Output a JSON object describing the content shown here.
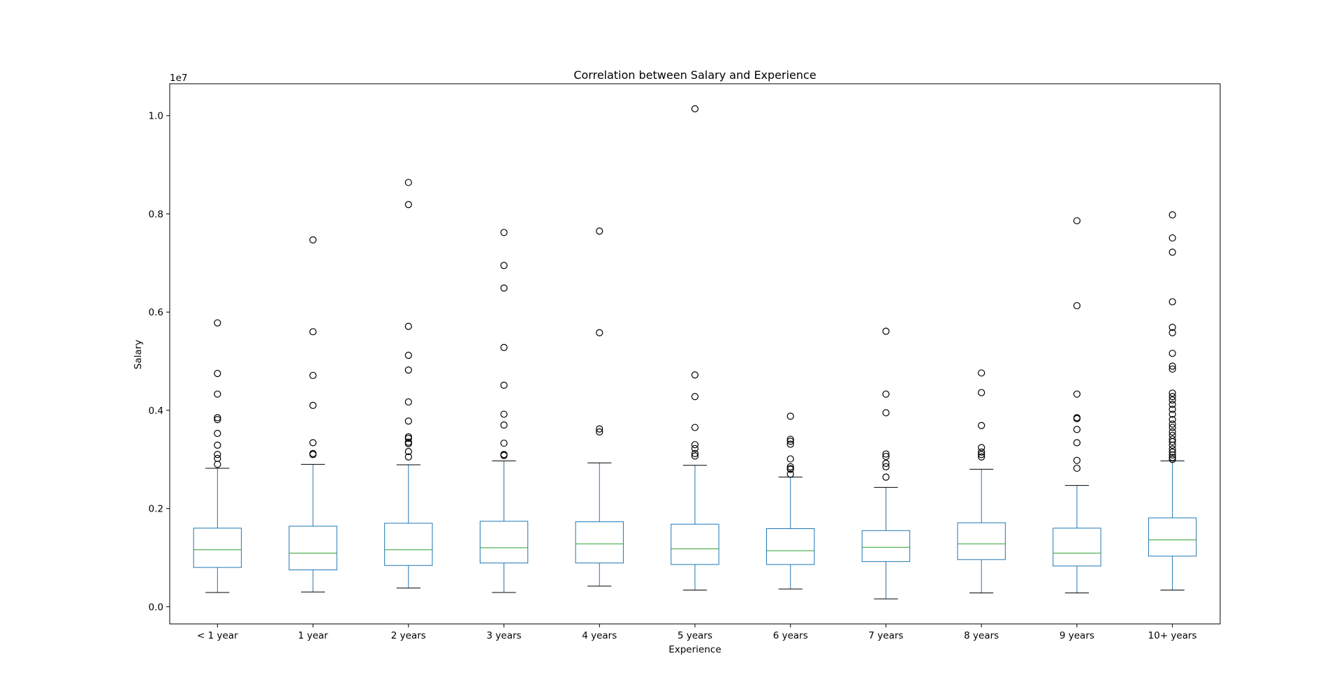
{
  "chart_data": {
    "type": "boxplot",
    "title": "Correlation between Salary and Experience",
    "xlabel": "Experience",
    "ylabel": "Salary",
    "y_offset_label": "1e7",
    "ylim": [
      -0.035,
      1.065
    ],
    "yticks": [
      0.0,
      0.2,
      0.4,
      0.6,
      0.8,
      1.0
    ],
    "ytick_labels": [
      "0.0",
      "0.2",
      "0.4",
      "0.6",
      "0.8",
      "1.0"
    ],
    "colors": {
      "box": "#1f77b4",
      "median": "#2ca02c",
      "whisker_cap": "#000000",
      "outlier": "#000000"
    },
    "categories": [
      "< 1 year",
      "1 year",
      "2 years",
      "3 years",
      "4 years",
      "5 years",
      "6 years",
      "7 years",
      "8 years",
      "9 years",
      "10+ years"
    ],
    "boxes": [
      {
        "whislo": 0.029,
        "q1": 0.08,
        "med": 0.116,
        "q3": 0.16,
        "whishi": 0.282,
        "fliers": [
          0.578,
          0.475,
          0.433,
          0.385,
          0.381,
          0.353,
          0.329,
          0.31,
          0.302,
          0.29
        ]
      },
      {
        "whislo": 0.03,
        "q1": 0.075,
        "med": 0.109,
        "q3": 0.164,
        "whishi": 0.29,
        "fliers": [
          0.747,
          0.56,
          0.471,
          0.41,
          0.334,
          0.312,
          0.31
        ]
      },
      {
        "whislo": 0.038,
        "q1": 0.084,
        "med": 0.116,
        "q3": 0.17,
        "whishi": 0.289,
        "fliers": [
          0.864,
          0.819,
          0.571,
          0.512,
          0.482,
          0.417,
          0.378,
          0.346,
          0.343,
          0.335,
          0.332,
          0.316,
          0.305
        ]
      },
      {
        "whislo": 0.029,
        "q1": 0.089,
        "med": 0.12,
        "q3": 0.174,
        "whishi": 0.297,
        "fliers": [
          0.762,
          0.695,
          0.649,
          0.528,
          0.451,
          0.392,
          0.37,
          0.333,
          0.31,
          0.308
        ]
      },
      {
        "whislo": 0.042,
        "q1": 0.089,
        "med": 0.128,
        "q3": 0.173,
        "whishi": 0.293,
        "fliers": [
          0.765,
          0.558,
          0.362,
          0.356
        ]
      },
      {
        "whislo": 0.034,
        "q1": 0.086,
        "med": 0.118,
        "q3": 0.168,
        "whishi": 0.288,
        "fliers": [
          1.014,
          0.472,
          0.428,
          0.365,
          0.33,
          0.322,
          0.312,
          0.307
        ]
      },
      {
        "whislo": 0.036,
        "q1": 0.086,
        "med": 0.114,
        "q3": 0.159,
        "whishi": 0.264,
        "fliers": [
          0.388,
          0.341,
          0.337,
          0.331,
          0.301,
          0.285,
          0.281,
          0.28,
          0.27
        ]
      },
      {
        "whislo": 0.016,
        "q1": 0.092,
        "med": 0.121,
        "q3": 0.155,
        "whishi": 0.243,
        "fliers": [
          0.561,
          0.433,
          0.395,
          0.311,
          0.306,
          0.292,
          0.285,
          0.264
        ]
      },
      {
        "whislo": 0.028,
        "q1": 0.096,
        "med": 0.128,
        "q3": 0.171,
        "whishi": 0.28,
        "fliers": [
          0.476,
          0.436,
          0.369,
          0.324,
          0.315,
          0.31,
          0.305
        ]
      },
      {
        "whislo": 0.028,
        "q1": 0.083,
        "med": 0.109,
        "q3": 0.16,
        "whishi": 0.247,
        "fliers": [
          0.786,
          0.613,
          0.433,
          0.385,
          0.383,
          0.361,
          0.334,
          0.298,
          0.282
        ]
      },
      {
        "whislo": 0.034,
        "q1": 0.103,
        "med": 0.136,
        "q3": 0.181,
        "whishi": 0.297,
        "fliers": [
          0.798,
          0.751,
          0.722,
          0.621,
          0.569,
          0.558,
          0.516,
          0.49,
          0.484,
          0.435,
          0.428,
          0.421,
          0.412,
          0.402,
          0.392,
          0.381,
          0.372,
          0.365,
          0.356,
          0.349,
          0.341,
          0.336,
          0.329,
          0.321,
          0.315,
          0.309,
          0.304,
          0.3
        ]
      }
    ]
  }
}
